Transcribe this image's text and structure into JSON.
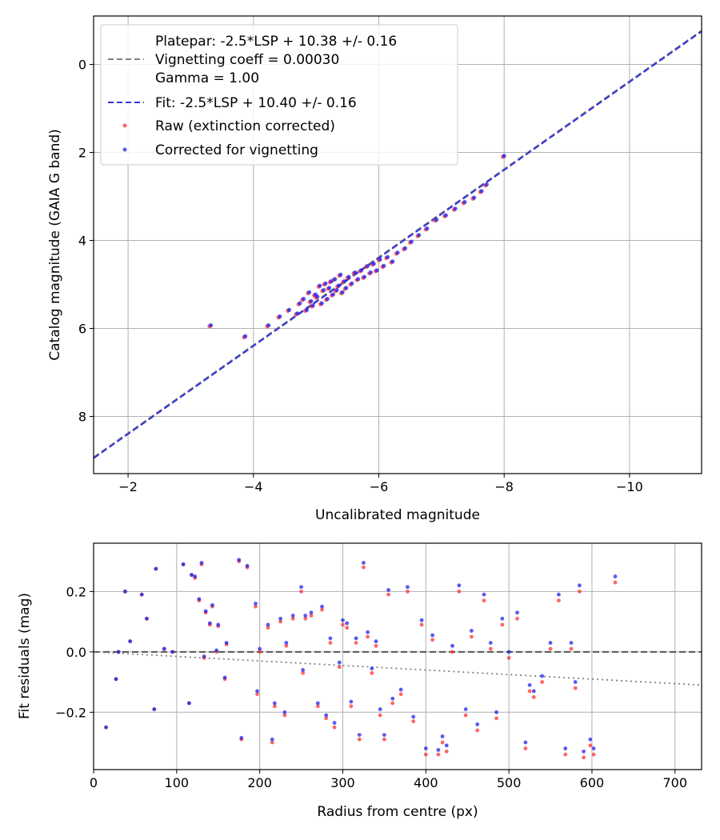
{
  "chart_data": [
    {
      "type": "scatter",
      "name": "calibration",
      "xlabel": "Uncalibrated magnitude",
      "ylabel": "Catalog magnitude (GAIA G band)",
      "xlim": [
        -1.45,
        -11.15
      ],
      "ylim": [
        9.3,
        -1.1
      ],
      "x_ticks": [
        -2,
        -4,
        -6,
        -8,
        -10
      ],
      "x_tick_labels": [
        "−2",
        "−4",
        "−6",
        "−8",
        "−10"
      ],
      "y_ticks": [
        0,
        2,
        4,
        6,
        8
      ],
      "y_tick_labels": [
        "0",
        "2",
        "4",
        "6",
        "8"
      ],
      "grid": true,
      "legend_position": "top-left",
      "legend": {
        "platepar_lines": [
          "Platepar: -2.5*LSP + 10.38 +/- 0.16",
          "Vignetting coeff = 0.00030",
          "Gamma = 1.00"
        ],
        "fit": "Fit: -2.5*LSP + 10.40 +/- 0.16",
        "raw": "Raw (extinction corrected)",
        "corrected": "Corrected for vignetting"
      },
      "lines": [
        {
          "name": "Platepar",
          "slope": 1.0,
          "intercept": 10.38,
          "color": "#808080",
          "style": "dashed"
        },
        {
          "name": "Fit",
          "slope": 1.0,
          "intercept": 10.4,
          "color": "#3333dd",
          "style": "dashed"
        }
      ],
      "series": [
        {
          "name": "Raw (extinction corrected)",
          "color": "#ff3333",
          "x": [
            -3.3,
            -3.85,
            -4.22,
            -4.4,
            -4.55,
            -4.68,
            -4.72,
            -4.78,
            -4.83,
            -4.87,
            -4.9,
            -4.93,
            -4.97,
            -5.0,
            -5.04,
            -5.07,
            -5.1,
            -5.13,
            -5.16,
            -5.19,
            -5.22,
            -5.25,
            -5.28,
            -5.31,
            -5.34,
            -5.37,
            -5.4,
            -5.43,
            -5.46,
            -5.5,
            -5.55,
            -5.6,
            -5.65,
            -5.7,
            -5.75,
            -5.8,
            -5.85,
            -5.9,
            -5.95,
            -6.0,
            -6.06,
            -6.12,
            -6.2,
            -6.28,
            -6.4,
            -6.5,
            -6.62,
            -6.75,
            -6.9,
            -7.05,
            -7.2,
            -7.35,
            -7.5,
            -7.62,
            -7.7,
            -7.98
          ],
          "y": [
            5.95,
            6.2,
            5.95,
            5.75,
            5.6,
            5.68,
            5.45,
            5.35,
            5.6,
            5.2,
            5.4,
            5.5,
            5.25,
            5.3,
            5.05,
            5.45,
            5.15,
            5.0,
            5.35,
            5.1,
            4.95,
            5.25,
            4.9,
            5.15,
            5.05,
            4.8,
            5.2,
            4.95,
            5.1,
            4.85,
            5.0,
            4.75,
            4.9,
            4.7,
            4.85,
            4.6,
            4.75,
            4.55,
            4.7,
            4.45,
            4.6,
            4.4,
            4.5,
            4.3,
            4.2,
            4.05,
            3.9,
            3.75,
            3.55,
            3.45,
            3.3,
            3.15,
            3.05,
            2.9,
            2.75,
            2.1
          ]
        },
        {
          "name": "Corrected for vignetting",
          "color": "#2222ee",
          "x": [
            -3.32,
            -3.87,
            -4.24,
            -4.42,
            -4.57,
            -4.7,
            -4.74,
            -4.8,
            -4.85,
            -4.89,
            -4.92,
            -4.95,
            -4.99,
            -5.02,
            -5.06,
            -5.09,
            -5.12,
            -5.15,
            -5.18,
            -5.21,
            -5.24,
            -5.27,
            -5.3,
            -5.33,
            -5.36,
            -5.39,
            -5.42,
            -5.45,
            -5.48,
            -5.52,
            -5.57,
            -5.62,
            -5.67,
            -5.72,
            -5.77,
            -5.82,
            -5.87,
            -5.92,
            -5.97,
            -6.02,
            -6.08,
            -6.14,
            -6.22,
            -6.3,
            -6.42,
            -6.52,
            -6.64,
            -6.77,
            -6.92,
            -7.07,
            -7.22,
            -7.37,
            -7.52,
            -7.64,
            -7.72,
            -8.0
          ],
          "y": [
            5.93,
            6.18,
            5.93,
            5.73,
            5.58,
            5.66,
            5.43,
            5.33,
            5.58,
            5.18,
            5.38,
            5.48,
            5.23,
            5.28,
            5.03,
            5.43,
            5.13,
            4.98,
            5.33,
            5.08,
            4.93,
            5.23,
            4.88,
            5.13,
            5.03,
            4.78,
            5.18,
            4.93,
            5.08,
            4.83,
            4.98,
            4.73,
            4.88,
            4.68,
            4.83,
            4.58,
            4.73,
            4.53,
            4.68,
            4.43,
            4.58,
            4.38,
            4.48,
            4.28,
            4.18,
            4.03,
            3.88,
            3.73,
            3.53,
            3.43,
            3.28,
            3.13,
            3.03,
            2.88,
            2.73,
            2.08
          ]
        }
      ]
    },
    {
      "type": "scatter",
      "name": "residuals",
      "xlabel": "Radius from centre (px)",
      "ylabel": "Fit residuals (mag)",
      "xlim": [
        0,
        732
      ],
      "ylim": [
        -0.39,
        0.36
      ],
      "x_ticks": [
        0,
        100,
        200,
        300,
        400,
        500,
        600,
        700
      ],
      "x_tick_labels": [
        "0",
        "100",
        "200",
        "300",
        "400",
        "500",
        "600",
        "700"
      ],
      "y_ticks": [
        0.2,
        0.0,
        -0.2
      ],
      "y_tick_labels": [
        "0.2",
        "0.0",
        "−0.2"
      ],
      "grid": true,
      "lines": [
        {
          "name": "zero",
          "x": [
            0,
            732
          ],
          "y": [
            0.0,
            0.0
          ],
          "color": "#555555",
          "style": "dashed"
        },
        {
          "name": "vignetting model",
          "x": [
            0,
            732
          ],
          "y": [
            0.0,
            -0.11
          ],
          "color": "#808080",
          "style": "dotted"
        }
      ],
      "series": [
        {
          "name": "Raw (extinction corrected)",
          "color": "#ff3333",
          "x": [
            15,
            27,
            30,
            38,
            44,
            58,
            64,
            73,
            75,
            85,
            95,
            108,
            115,
            118,
            122,
            127,
            130,
            133,
            135,
            140,
            143,
            148,
            150,
            158,
            160,
            175,
            178,
            185,
            195,
            197,
            200,
            210,
            215,
            218,
            225,
            230,
            232,
            240,
            250,
            252,
            255,
            262,
            270,
            275,
            280,
            285,
            290,
            296,
            300,
            305,
            310,
            316,
            320,
            325,
            330,
            335,
            340,
            345,
            350,
            355,
            360,
            370,
            378,
            385,
            395,
            400,
            408,
            415,
            420,
            425,
            432,
            440,
            448,
            455,
            462,
            470,
            478,
            485,
            492,
            500,
            510,
            520,
            525,
            530,
            540,
            550,
            560,
            568,
            575,
            580,
            585,
            590,
            598,
            602,
            628
          ],
          "y": [
            -0.25,
            -0.09,
            0.0,
            0.2,
            0.035,
            0.19,
            0.11,
            -0.19,
            0.275,
            0.01,
            0.0,
            0.29,
            -0.17,
            0.255,
            0.245,
            0.17,
            0.29,
            -0.02,
            0.13,
            0.09,
            0.15,
            -0.0,
            0.085,
            -0.09,
            0.025,
            0.3,
            -0.29,
            0.28,
            0.15,
            -0.14,
            0.0,
            0.08,
            -0.3,
            -0.18,
            0.1,
            -0.21,
            0.02,
            0.11,
            0.2,
            -0.07,
            0.11,
            0.12,
            -0.18,
            0.14,
            -0.22,
            0.03,
            -0.25,
            -0.05,
            0.09,
            0.08,
            -0.18,
            0.03,
            -0.29,
            0.28,
            0.05,
            -0.07,
            0.02,
            -0.21,
            -0.29,
            0.19,
            -0.17,
            -0.14,
            0.2,
            -0.23,
            0.09,
            -0.34,
            0.04,
            -0.34,
            -0.3,
            -0.33,
            0.0,
            0.2,
            -0.21,
            0.05,
            -0.26,
            0.17,
            0.01,
            -0.22,
            0.09,
            -0.02,
            0.11,
            -0.32,
            -0.13,
            -0.15,
            -0.1,
            0.01,
            0.17,
            -0.34,
            0.01,
            -0.12,
            0.2,
            -0.35,
            -0.31,
            -0.34,
            0.23
          ]
        },
        {
          "name": "Corrected for vignetting",
          "color": "#2222ee",
          "x": [
            15,
            27,
            30,
            38,
            44,
            58,
            64,
            73,
            75,
            85,
            95,
            108,
            115,
            118,
            122,
            127,
            130,
            133,
            135,
            140,
            143,
            148,
            150,
            158,
            160,
            175,
            178,
            185,
            195,
            197,
            200,
            210,
            215,
            218,
            225,
            230,
            232,
            240,
            250,
            252,
            255,
            262,
            270,
            275,
            280,
            285,
            290,
            296,
            300,
            305,
            310,
            316,
            320,
            325,
            330,
            335,
            340,
            345,
            350,
            355,
            360,
            370,
            378,
            385,
            395,
            400,
            408,
            415,
            420,
            425,
            432,
            440,
            448,
            455,
            462,
            470,
            478,
            485,
            492,
            500,
            510,
            520,
            525,
            530,
            540,
            550,
            560,
            568,
            575,
            580,
            585,
            590,
            598,
            602,
            628
          ],
          "y": [
            -0.25,
            -0.09,
            0.0,
            0.2,
            0.035,
            0.19,
            0.11,
            -0.19,
            0.275,
            0.01,
            0.0,
            0.29,
            -0.17,
            0.255,
            0.25,
            0.175,
            0.295,
            -0.015,
            0.135,
            0.095,
            0.155,
            0.005,
            0.09,
            -0.085,
            0.03,
            0.305,
            -0.285,
            0.285,
            0.16,
            -0.13,
            0.01,
            0.09,
            -0.29,
            -0.17,
            0.11,
            -0.2,
            0.03,
            0.12,
            0.215,
            -0.06,
            0.12,
            0.13,
            -0.17,
            0.15,
            -0.21,
            0.045,
            -0.235,
            -0.035,
            0.105,
            0.095,
            -0.165,
            0.045,
            -0.275,
            0.295,
            0.065,
            -0.055,
            0.035,
            -0.19,
            -0.275,
            0.205,
            -0.155,
            -0.125,
            0.215,
            -0.215,
            0.105,
            -0.32,
            0.055,
            -0.325,
            -0.28,
            -0.31,
            0.02,
            0.22,
            -0.19,
            0.07,
            -0.24,
            0.19,
            0.03,
            -0.2,
            0.11,
            0.0,
            0.13,
            -0.3,
            -0.11,
            -0.13,
            -0.08,
            0.03,
            0.19,
            -0.32,
            0.03,
            -0.1,
            0.22,
            -0.33,
            -0.29,
            -0.32,
            0.25
          ]
        }
      ]
    }
  ]
}
